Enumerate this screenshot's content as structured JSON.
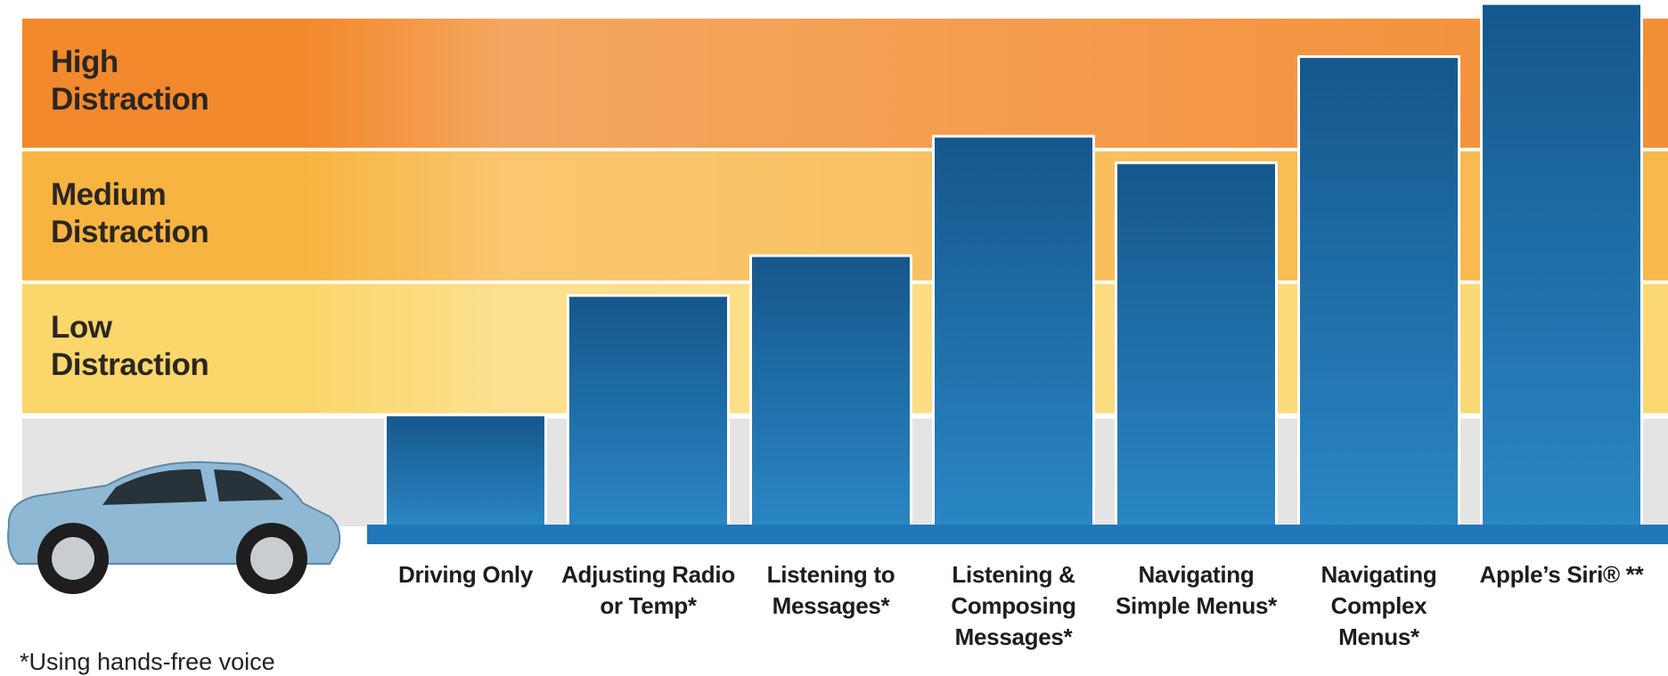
{
  "chart_data": {
    "type": "bar",
    "categories": [
      "Driving Only",
      "Adjusting Radio or Temp*",
      "Listening to Messages*",
      "Listening & Composing Messages*",
      "Navigating Simple Menus*",
      "Navigating Complex Menus*",
      "Apple’s Siri® **"
    ],
    "values": [
      1.0,
      1.9,
      2.2,
      3.1,
      2.9,
      3.7,
      4.1
    ],
    "color": "#1f6ea8",
    "ylim": [
      0.16,
      4.12
    ],
    "bands": [
      {
        "label": "Low Distraction",
        "from": 1,
        "to": 2,
        "color": "#fbd66a"
      },
      {
        "label": "Medium Distraction",
        "from": 2,
        "to": 3,
        "color": "#f8b440"
      },
      {
        "label": "High Distraction",
        "from": 3,
        "to": 4,
        "color": "#f2892c"
      }
    ],
    "footnote": "*Using hands-free voice"
  }
}
